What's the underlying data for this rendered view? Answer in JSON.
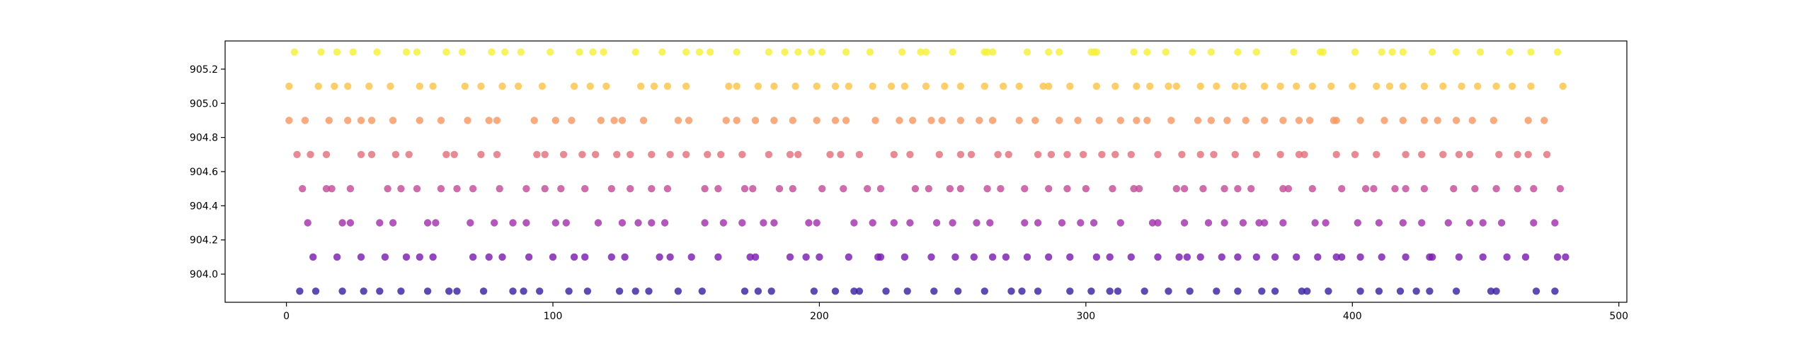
{
  "chart_data": {
    "type": "scatter",
    "title": "",
    "xlabel": "",
    "ylabel": "",
    "xlim": [
      -23,
      503
    ],
    "ylim": [
      903.835,
      905.365
    ],
    "x_ticks": [
      0,
      100,
      200,
      300,
      400,
      500
    ],
    "y_ticks": [
      904.0,
      904.2,
      904.4,
      904.6,
      904.8,
      905.0,
      905.2
    ],
    "x_tick_labels": [
      "0",
      "100",
      "200",
      "300",
      "400",
      "500"
    ],
    "y_tick_labels": [
      "904.0",
      "904.2",
      "904.4",
      "904.6",
      "904.8",
      "905.0",
      "905.2"
    ],
    "grid": false,
    "colors": {
      "905.3": "#f5f03a",
      "905.1": "#fbc44a",
      "904.9": "#f59862",
      "904.7": "#e2707c",
      "904.5": "#c44c98",
      "904.3": "#a432ac",
      "904.1": "#7a1eb0",
      "903.9": "#3a22a0"
    },
    "series": [
      {
        "y": 905.3,
        "x": [
          3,
          13,
          19,
          25,
          34,
          45,
          49,
          60,
          66,
          77,
          82,
          88,
          99,
          110,
          115,
          119,
          131,
          141,
          150,
          155,
          159,
          169,
          181,
          187,
          192,
          197,
          201,
          210,
          219,
          231,
          238,
          240,
          250,
          262,
          263,
          265,
          278,
          286,
          290,
          302,
          303,
          304,
          318,
          323,
          330,
          340,
          347,
          357,
          364,
          378,
          388,
          389,
          401,
          411,
          415,
          419,
          430,
          439,
          448,
          459,
          467,
          477
        ]
      },
      {
        "y": 905.1,
        "x": [
          1,
          12,
          18,
          23,
          31,
          39,
          50,
          55,
          67,
          73,
          81,
          87,
          96,
          108,
          114,
          120,
          133,
          138,
          143,
          150,
          166,
          169,
          177,
          183,
          191,
          199,
          206,
          211,
          220,
          227,
          232,
          240,
          247,
          253,
          262,
          269,
          275,
          284,
          286,
          294,
          304,
          311,
          319,
          324,
          331,
          334,
          343,
          349,
          356,
          359,
          367,
          373,
          379,
          385,
          392,
          400,
          409,
          414,
          419,
          427,
          434,
          441,
          447,
          454,
          460,
          467,
          479
        ]
      },
      {
        "y": 904.9,
        "x": [
          1,
          7,
          16,
          23,
          28,
          32,
          40,
          50,
          58,
          68,
          76,
          79,
          93,
          101,
          107,
          118,
          123,
          126,
          134,
          147,
          151,
          165,
          169,
          176,
          183,
          190,
          199,
          206,
          210,
          221,
          230,
          235,
          242,
          246,
          253,
          260,
          265,
          275,
          281,
          290,
          297,
          305,
          313,
          319,
          323,
          332,
          342,
          347,
          353,
          360,
          367,
          374,
          380,
          384,
          393,
          394,
          403,
          412,
          419,
          427,
          432,
          439,
          445,
          453,
          466,
          472
        ]
      },
      {
        "y": 904.7,
        "x": [
          4,
          9,
          15,
          28,
          32,
          41,
          46,
          60,
          63,
          73,
          79,
          94,
          97,
          104,
          111,
          116,
          124,
          129,
          137,
          144,
          150,
          158,
          163,
          171,
          181,
          189,
          192,
          204,
          208,
          215,
          228,
          234,
          245,
          253,
          257,
          267,
          271,
          282,
          287,
          293,
          299,
          306,
          311,
          317,
          327,
          336,
          343,
          348,
          356,
          364,
          373,
          380,
          382,
          394,
          401,
          409,
          420,
          426,
          434,
          440,
          444,
          455,
          462,
          466,
          473
        ]
      },
      {
        "y": 904.5,
        "x": [
          6,
          15,
          17,
          24,
          38,
          43,
          49,
          58,
          64,
          70,
          80,
          90,
          97,
          103,
          112,
          122,
          129,
          137,
          143,
          157,
          162,
          172,
          175,
          185,
          190,
          201,
          209,
          218,
          223,
          236,
          241,
          249,
          253,
          263,
          268,
          277,
          286,
          293,
          300,
          310,
          318,
          320,
          334,
          337,
          344,
          352,
          357,
          362,
          374,
          376,
          385,
          396,
          405,
          408,
          416,
          420,
          427,
          438,
          446,
          454,
          462,
          468,
          478
        ]
      },
      {
        "y": 904.3,
        "x": [
          8,
          21,
          24,
          35,
          40,
          53,
          56,
          69,
          78,
          85,
          90,
          101,
          105,
          117,
          126,
          132,
          137,
          142,
          157,
          164,
          171,
          179,
          183,
          196,
          199,
          213,
          220,
          228,
          234,
          244,
          250,
          259,
          264,
          277,
          282,
          291,
          298,
          303,
          313,
          325,
          327,
          337,
          346,
          352,
          359,
          365,
          367,
          374,
          386,
          390,
          402,
          410,
          419,
          426,
          436,
          444,
          449,
          456,
          468,
          476
        ]
      },
      {
        "y": 904.1,
        "x": [
          10,
          19,
          28,
          37,
          45,
          50,
          55,
          70,
          76,
          81,
          91,
          100,
          108,
          112,
          122,
          127,
          140,
          144,
          152,
          162,
          174,
          176,
          189,
          195,
          200,
          211,
          222,
          223,
          232,
          242,
          251,
          258,
          265,
          270,
          278,
          286,
          294,
          304,
          309,
          317,
          327,
          335,
          338,
          343,
          351,
          357,
          364,
          371,
          379,
          387,
          394,
          396,
          403,
          411,
          420,
          429,
          430,
          440,
          449,
          458,
          465,
          477,
          480
        ]
      },
      {
        "y": 903.9,
        "x": [
          5,
          11,
          21,
          29,
          35,
          43,
          53,
          61,
          64,
          74,
          85,
          89,
          95,
          106,
          113,
          125,
          131,
          136,
          147,
          156,
          172,
          177,
          182,
          198,
          206,
          213,
          215,
          225,
          233,
          243,
          252,
          262,
          272,
          276,
          282,
          294,
          302,
          309,
          312,
          322,
          331,
          339,
          349,
          357,
          366,
          371,
          381,
          383,
          391,
          403,
          410,
          418,
          424,
          429,
          439,
          452,
          454,
          469,
          476
        ]
      }
    ]
  }
}
